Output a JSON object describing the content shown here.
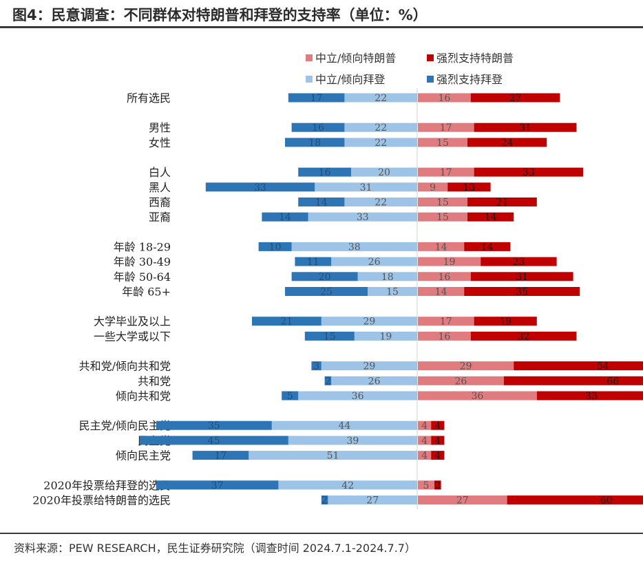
{
  "title": "图4：民意调查：不同群体对特朗普和拜登的支持率（单位：%）",
  "source": "资料来源：PEW RESEARCH，民生证券研究院（调查时间 2024.7.1-2024.7.7）",
  "chart_data": {
    "type": "bar",
    "stacked": true,
    "diverging": true,
    "legend_position": "top",
    "categories": [
      "所有选民",
      "男性",
      "女性",
      "白人",
      "黑人",
      "西裔",
      "亚裔",
      "年龄 18-29",
      "年龄 30-49",
      "年龄 50-64",
      "年龄 65+",
      "大学毕业及以上",
      "一些大学或以下",
      "共和党/倾向共和党",
      "共和党",
      "倾向共和党",
      "民主党/倾向民主党",
      "民主党",
      "倾向民主党",
      "2020年投票给拜登的选民",
      "2020年投票给特朗普的选民"
    ],
    "groups": [
      1,
      2,
      4,
      4,
      2,
      3,
      3,
      2
    ],
    "series": [
      {
        "name": "中立/倾向特朗普",
        "color": "#e07b7f",
        "side": "right",
        "values": [
          16,
          17,
          15,
          17,
          9,
          15,
          15,
          14,
          19,
          16,
          14,
          17,
          16,
          29,
          26,
          36,
          4,
          4,
          4,
          5,
          27
        ]
      },
      {
        "name": "强烈支持特朗普",
        "color": "#c00000",
        "side": "right",
        "values": [
          27,
          31,
          24,
          33,
          13,
          21,
          14,
          14,
          23,
          31,
          35,
          19,
          32,
          54,
          66,
          33,
          4,
          4,
          4,
          2,
          60
        ]
      },
      {
        "name": "中立/倾向拜登",
        "color": "#9dc3e6",
        "side": "left",
        "values": [
          22,
          22,
          22,
          20,
          31,
          22,
          33,
          38,
          26,
          18,
          15,
          29,
          19,
          29,
          26,
          36,
          44,
          39,
          51,
          42,
          27
        ]
      },
      {
        "name": "强烈支持拜登",
        "color": "#2e75b6",
        "side": "left",
        "values": [
          17,
          16,
          18,
          16,
          33,
          14,
          14,
          10,
          11,
          20,
          25,
          21,
          15,
          3,
          2,
          5,
          35,
          45,
          17,
          37,
          2
        ]
      }
    ]
  }
}
